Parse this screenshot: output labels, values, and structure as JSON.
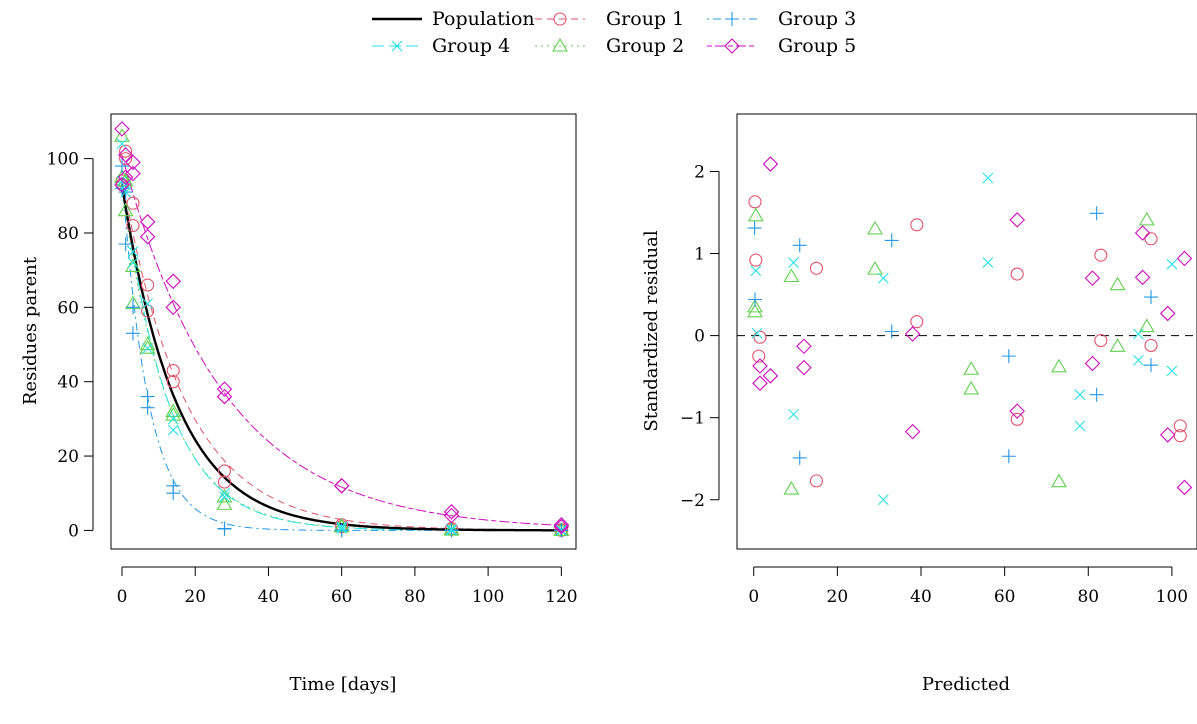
{
  "legend": {
    "position": "top-center",
    "entries": [
      {
        "label": "Population",
        "color": "#000000",
        "dash": "solid",
        "marker": "none"
      },
      {
        "label": "Group 1",
        "color": "#DF536B",
        "dash": "dashed",
        "marker": "circle"
      },
      {
        "label": "Group 2",
        "color": "#61D04F",
        "dash": "dotted",
        "marker": "triangle"
      },
      {
        "label": "Group 3",
        "color": "#2297E6",
        "dash": "dotdash",
        "marker": "plus"
      },
      {
        "label": "Group 4",
        "color": "#28E2E5",
        "dash": "longdash",
        "marker": "cross"
      },
      {
        "label": "Group 5",
        "color": "#CD0BBC",
        "dash": "twodash",
        "marker": "diamond"
      }
    ]
  },
  "chart_data": [
    {
      "type": "line",
      "title": "",
      "xlabel": "Time [days]",
      "ylabel": "Residues parent",
      "xlim": [
        -3,
        124
      ],
      "ylim": [
        -5,
        112
      ],
      "xticks": [
        0,
        20,
        40,
        60,
        80,
        100,
        120
      ],
      "yticks": [
        0,
        20,
        40,
        60,
        80,
        100
      ],
      "grid": false,
      "curves": [
        {
          "name": "Population",
          "model": "exp",
          "y0": 93,
          "k": 0.067
        },
        {
          "name": "Group 1",
          "model": "exp",
          "y0": 95,
          "k": 0.058
        },
        {
          "name": "Group 2",
          "model": "exp",
          "y0": 92,
          "k": 0.078
        },
        {
          "name": "Group 3",
          "model": "exp",
          "y0": 96,
          "k": 0.14
        },
        {
          "name": "Group 4",
          "model": "exp",
          "y0": 95,
          "k": 0.08
        },
        {
          "name": "Group 5",
          "model": "exp",
          "y0": 101,
          "k": 0.036
        }
      ],
      "series": [
        {
          "name": "Group 1",
          "points": [
            [
              0,
              94
            ],
            [
              0,
              93
            ],
            [
              1,
              102
            ],
            [
              1,
              100
            ],
            [
              3,
              88
            ],
            [
              3,
              82
            ],
            [
              7,
              66
            ],
            [
              7,
              59
            ],
            [
              14,
              43
            ],
            [
              14,
              40
            ],
            [
              28,
              16
            ],
            [
              28,
              13
            ],
            [
              60,
              1.5
            ],
            [
              60,
              1
            ],
            [
              90,
              0.5
            ],
            [
              90,
              0.3
            ],
            [
              120,
              0
            ],
            [
              120,
              0.2
            ]
          ]
        },
        {
          "name": "Group 2",
          "points": [
            [
              0,
              106
            ],
            [
              0,
              95
            ],
            [
              1,
              86
            ],
            [
              1,
              94
            ],
            [
              3,
              71
            ],
            [
              3,
              61
            ],
            [
              7,
              50
            ],
            [
              7,
              49
            ],
            [
              14,
              32
            ],
            [
              14,
              31
            ],
            [
              28,
              9
            ],
            [
              28,
              7
            ],
            [
              60,
              1
            ],
            [
              60,
              1.2
            ],
            [
              90,
              0.3
            ],
            [
              90,
              0.1
            ],
            [
              120,
              0.1
            ],
            [
              120,
              0
            ]
          ]
        },
        {
          "name": "Group 3",
          "points": [
            [
              0,
              98
            ],
            [
              0,
              92
            ],
            [
              1,
              77
            ],
            [
              1,
              91
            ],
            [
              3,
              60
            ],
            [
              3,
              53
            ],
            [
              7,
              36
            ],
            [
              7,
              33
            ],
            [
              14,
              12
            ],
            [
              14,
              10
            ],
            [
              28,
              0.5
            ],
            [
              28,
              0.4
            ],
            [
              60,
              0
            ],
            [
              60,
              0.1
            ],
            [
              90,
              0
            ],
            [
              90,
              0.1
            ],
            [
              120,
              0
            ],
            [
              120,
              0
            ]
          ]
        },
        {
          "name": "Group 4",
          "points": [
            [
              0,
              104
            ],
            [
              0,
              94
            ],
            [
              1,
              93
            ],
            [
              1,
              91
            ],
            [
              3,
              75
            ],
            [
              3,
              72
            ],
            [
              7,
              61
            ],
            [
              7,
              49
            ],
            [
              14,
              30
            ],
            [
              14,
              27
            ],
            [
              28,
              10
            ],
            [
              28,
              9
            ],
            [
              60,
              1
            ],
            [
              60,
              0.5
            ],
            [
              90,
              0.3
            ],
            [
              90,
              0
            ],
            [
              120,
              0
            ],
            [
              120,
              0.1
            ]
          ]
        },
        {
          "name": "Group 5",
          "points": [
            [
              0,
              108
            ],
            [
              0,
              93
            ],
            [
              1,
              101
            ],
            [
              1,
              95
            ],
            [
              3,
              99
            ],
            [
              3,
              96
            ],
            [
              7,
              83
            ],
            [
              7,
              79
            ],
            [
              14,
              67
            ],
            [
              14,
              60
            ],
            [
              28,
              38
            ],
            [
              28,
              36
            ],
            [
              60,
              12
            ],
            [
              60,
              12
            ],
            [
              90,
              5
            ],
            [
              90,
              4
            ],
            [
              120,
              1
            ],
            [
              120,
              1.5
            ]
          ]
        }
      ]
    },
    {
      "type": "scatter",
      "title": "",
      "xlabel": "Predicted",
      "ylabel": "Standardized residual",
      "xlim": [
        -4,
        106
      ],
      "ylim": [
        -2.6,
        2.7
      ],
      "xticks": [
        0,
        20,
        40,
        60,
        80,
        100
      ],
      "yticks": [
        -2,
        -1,
        0,
        1,
        2
      ],
      "yticklabels": [
        "−2",
        "−1",
        "0",
        "1",
        "2"
      ],
      "reference_line": {
        "y": 0,
        "style": "dashed"
      },
      "grid": false,
      "series": [
        {
          "name": "Group 1",
          "points": [
            [
              0.3,
              1.63
            ],
            [
              0.5,
              0.92
            ],
            [
              1.5,
              -0.02
            ],
            [
              1.2,
              -0.25
            ],
            [
              15,
              0.82
            ],
            [
              15,
              -1.77
            ],
            [
              39,
              1.35
            ],
            [
              39,
              0.17
            ],
            [
              63,
              0.75
            ],
            [
              63,
              -1.02
            ],
            [
              83,
              0.98
            ],
            [
              83,
              -0.06
            ],
            [
              95,
              1.18
            ],
            [
              95,
              -0.12
            ],
            [
              102,
              -1.1
            ],
            [
              102,
              -1.22
            ]
          ]
        },
        {
          "name": "Group 2",
          "points": [
            [
              0.5,
              1.46
            ],
            [
              0.3,
              0.35
            ],
            [
              0.3,
              0.29
            ],
            [
              9,
              0.72
            ],
            [
              9,
              -1.87
            ],
            [
              29,
              1.3
            ],
            [
              29,
              0.81
            ],
            [
              52,
              -0.41
            ],
            [
              52,
              -0.65
            ],
            [
              73,
              -0.38
            ],
            [
              73,
              -1.78
            ],
            [
              87,
              0.62
            ],
            [
              87,
              -0.13
            ],
            [
              94,
              1.41
            ],
            [
              94,
              0.11
            ]
          ]
        },
        {
          "name": "Group 3",
          "points": [
            [
              0.2,
              1.31
            ],
            [
              0.3,
              0.44
            ],
            [
              11,
              1.1
            ],
            [
              11,
              -1.49
            ],
            [
              33,
              1.16
            ],
            [
              33,
              0.05
            ],
            [
              61,
              -0.25
            ],
            [
              61,
              -1.47
            ],
            [
              82,
              1.49
            ],
            [
              82,
              -0.72
            ],
            [
              95,
              0.47
            ],
            [
              95,
              -0.36
            ]
          ]
        },
        {
          "name": "Group 4",
          "points": [
            [
              0.5,
              0.79
            ],
            [
              0.8,
              0.03
            ],
            [
              9.5,
              0.89
            ],
            [
              9.5,
              -0.96
            ],
            [
              31,
              0.7
            ],
            [
              31,
              -2.0
            ],
            [
              56,
              1.92
            ],
            [
              56,
              0.89
            ],
            [
              78,
              -0.72
            ],
            [
              78,
              -1.1
            ],
            [
              92,
              0.02
            ],
            [
              92,
              -0.3
            ],
            [
              100,
              0.87
            ],
            [
              100,
              -0.43
            ]
          ]
        },
        {
          "name": "Group 5",
          "points": [
            [
              1.5,
              -0.37
            ],
            [
              1.5,
              -0.58
            ],
            [
              4,
              2.09
            ],
            [
              4,
              -0.49
            ],
            [
              12,
              -0.13
            ],
            [
              12,
              -0.39
            ],
            [
              38,
              0.02
            ],
            [
              38,
              -1.17
            ],
            [
              63,
              1.41
            ],
            [
              63,
              -0.92
            ],
            [
              81,
              0.7
            ],
            [
              81,
              -0.34
            ],
            [
              93,
              1.25
            ],
            [
              93,
              0.71
            ],
            [
              99,
              0.27
            ],
            [
              99,
              -1.21
            ],
            [
              103,
              0.94
            ],
            [
              103,
              -1.85
            ]
          ]
        }
      ]
    }
  ]
}
